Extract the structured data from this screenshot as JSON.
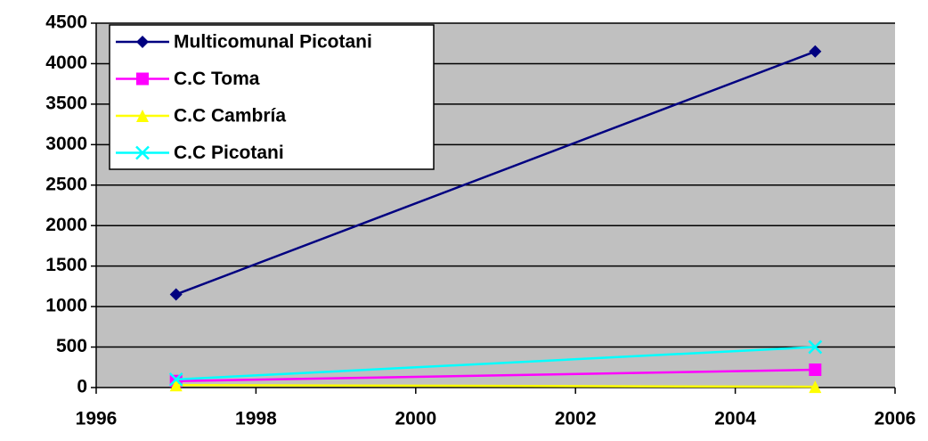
{
  "chart_data": {
    "type": "line",
    "x": [
      1997,
      2005
    ],
    "series": [
      {
        "name": "Multicomunal Picotani",
        "color": "#000080",
        "marker": "diamond",
        "values": [
          1150,
          4150
        ]
      },
      {
        "name": "C.C Toma",
        "color": "#ff00ff",
        "marker": "square",
        "values": [
          80,
          220
        ]
      },
      {
        "name": "C.C Cambría",
        "color": "#ffff00",
        "marker": "triangle",
        "values": [
          30,
          10
        ]
      },
      {
        "name": "C.C Picotani",
        "color": "#00ffff",
        "marker": "x",
        "values": [
          100,
          500
        ]
      }
    ],
    "xlim": [
      1996,
      2006
    ],
    "xticks": [
      1996,
      1998,
      2000,
      2002,
      2004,
      2006
    ],
    "ylim": [
      0,
      4500
    ],
    "yticks": [
      0,
      500,
      1000,
      1500,
      2000,
      2500,
      3000,
      3500,
      4000,
      4500
    ],
    "grid": true,
    "legend": "upper left",
    "plot_background": "#c0c0c0"
  }
}
